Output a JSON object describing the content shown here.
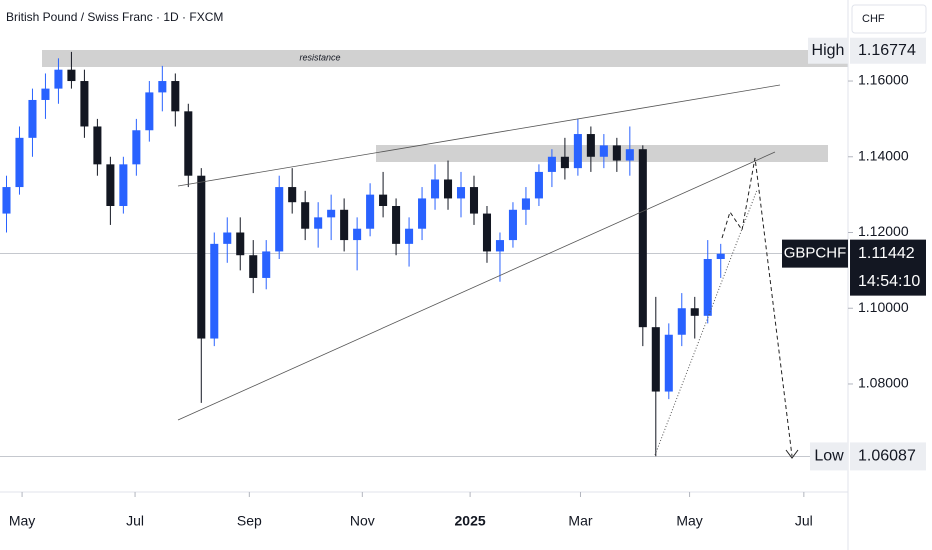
{
  "chart_data": {
    "type": "candlestick",
    "title": "British Pound / Swiss Franc · 1D · FXCM",
    "currency": "CHF",
    "annotation": "resistance",
    "up_color": "#2962ff",
    "down_color": "#131722",
    "open": [
      1.125,
      1.132,
      1.145,
      1.155,
      1.158,
      1.163,
      1.16,
      1.148,
      1.138,
      1.127,
      1.138,
      1.147,
      1.157,
      1.16,
      1.152,
      1.135,
      1.092,
      1.117,
      1.12,
      1.114,
      1.108,
      1.115,
      1.132,
      1.128,
      1.121,
      1.124,
      1.126,
      1.118,
      1.121,
      1.13,
      1.127,
      1.117,
      1.121,
      1.129,
      1.134,
      1.129,
      1.132,
      1.125,
      1.115,
      1.118,
      1.126,
      1.129,
      1.136,
      1.14,
      1.137,
      1.146,
      1.14,
      1.143,
      1.139,
      1.142,
      1.095,
      1.078,
      1.093,
      1.1,
      1.098,
      1.113
    ],
    "high": [
      1.135,
      1.148,
      1.158,
      1.162,
      1.166,
      1.1677,
      1.163,
      1.15,
      1.14,
      1.14,
      1.15,
      1.16,
      1.164,
      1.162,
      1.154,
      1.137,
      1.12,
      1.124,
      1.124,
      1.118,
      1.118,
      1.135,
      1.137,
      1.131,
      1.128,
      1.13,
      1.129,
      1.124,
      1.133,
      1.136,
      1.129,
      1.124,
      1.132,
      1.138,
      1.139,
      1.136,
      1.135,
      1.127,
      1.12,
      1.128,
      1.132,
      1.138,
      1.142,
      1.145,
      1.15,
      1.148,
      1.146,
      1.145,
      1.148,
      1.143,
      1.103,
      1.096,
      1.104,
      1.103,
      1.118,
      1.117
    ],
    "low": [
      1.12,
      1.13,
      1.14,
      1.15,
      1.154,
      1.158,
      1.145,
      1.135,
      1.122,
      1.125,
      1.135,
      1.144,
      1.152,
      1.148,
      1.132,
      1.075,
      1.09,
      1.112,
      1.11,
      1.104,
      1.105,
      1.113,
      1.125,
      1.118,
      1.116,
      1.118,
      1.115,
      1.11,
      1.119,
      1.124,
      1.114,
      1.111,
      1.118,
      1.126,
      1.126,
      1.124,
      1.122,
      1.112,
      1.107,
      1.116,
      1.122,
      1.127,
      1.132,
      1.134,
      1.135,
      1.136,
      1.137,
      1.136,
      1.135,
      1.09,
      1.0609,
      1.076,
      1.09,
      1.092,
      1.096,
      1.108
    ],
    "close": [
      1.132,
      1.145,
      1.155,
      1.158,
      1.163,
      1.16,
      1.148,
      1.138,
      1.127,
      1.138,
      1.147,
      1.157,
      1.16,
      1.152,
      1.135,
      1.092,
      1.117,
      1.12,
      1.114,
      1.108,
      1.115,
      1.132,
      1.128,
      1.121,
      1.124,
      1.126,
      1.118,
      1.121,
      1.13,
      1.127,
      1.117,
      1.121,
      1.129,
      1.134,
      1.129,
      1.132,
      1.125,
      1.115,
      1.118,
      1.126,
      1.129,
      1.136,
      1.14,
      1.137,
      1.146,
      1.14,
      1.143,
      1.139,
      1.142,
      1.095,
      1.078,
      1.093,
      1.1,
      1.098,
      1.113,
      1.1144
    ],
    "xlim": [
      -0.5,
      64.8
    ],
    "xticks": [
      {
        "value": 1.2,
        "label": "May"
      },
      {
        "value": 9.9,
        "label": "Jul"
      },
      {
        "value": 18.7,
        "label": "Sep"
      },
      {
        "value": 27.4,
        "label": "Nov"
      },
      {
        "value": 35.7,
        "label": "2025"
      },
      {
        "value": 44.2,
        "label": "Mar"
      },
      {
        "value": 52.6,
        "label": "May"
      },
      {
        "value": 61.4,
        "label": "Jul"
      }
    ],
    "ylim": [
      1.052,
      1.1814
    ],
    "yticks": [
      {
        "value": 1.08,
        "label": "1.08000"
      },
      {
        "value": 1.1,
        "label": "1.10000"
      },
      {
        "value": 1.12,
        "label": "1.12000"
      },
      {
        "value": 1.14,
        "label": "1.14000"
      },
      {
        "value": 1.16,
        "label": "1.16000"
      }
    ],
    "high_label": "High",
    "high_value": 1.16774,
    "low_label": "Low",
    "low_value": 1.06087,
    "symbol": "GBPCHF",
    "last_value": 1.11442,
    "countdown": "14:54:10"
  }
}
